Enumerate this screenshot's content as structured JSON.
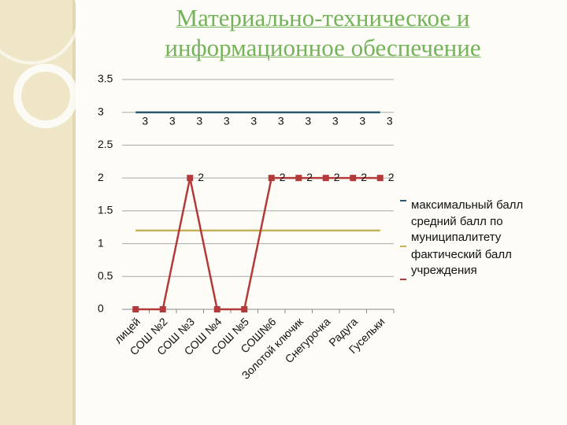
{
  "chart_data": {
    "type": "line",
    "title": "Материально-техническое и информационное обеспечение",
    "categories": [
      "лицей",
      "СОШ №2",
      "СОШ №3",
      "СОШ №4",
      "СОШ №5",
      "СОШ№6",
      "Золотой ключик",
      "Снегурочка",
      "Радуга",
      "Гусельки"
    ],
    "series": [
      {
        "name": "максимальный балл",
        "color": "#2e5a6e",
        "values": [
          3,
          3,
          3,
          3,
          3,
          3,
          3,
          3,
          3,
          3
        ]
      },
      {
        "name": "средний балл по муниципалитету",
        "color": "#c2b25a",
        "values": [
          1.2,
          1.2,
          1.2,
          1.2,
          1.2,
          1.2,
          1.2,
          1.2,
          1.2,
          1.2
        ]
      },
      {
        "name": "фактический балл учреждения",
        "color": "#b33a3a",
        "values": [
          0,
          0,
          2,
          0,
          0,
          2,
          2,
          2,
          2,
          2
        ],
        "value_labels": [
          null,
          null,
          "2",
          null,
          null,
          "2",
          "2",
          "2",
          "2",
          "2"
        ],
        "markers": true
      }
    ],
    "ylim": [
      0,
      3.5
    ],
    "yticks": [
      0,
      0.5,
      1,
      1.5,
      2,
      2.5,
      3,
      3.5
    ],
    "grid": true
  }
}
